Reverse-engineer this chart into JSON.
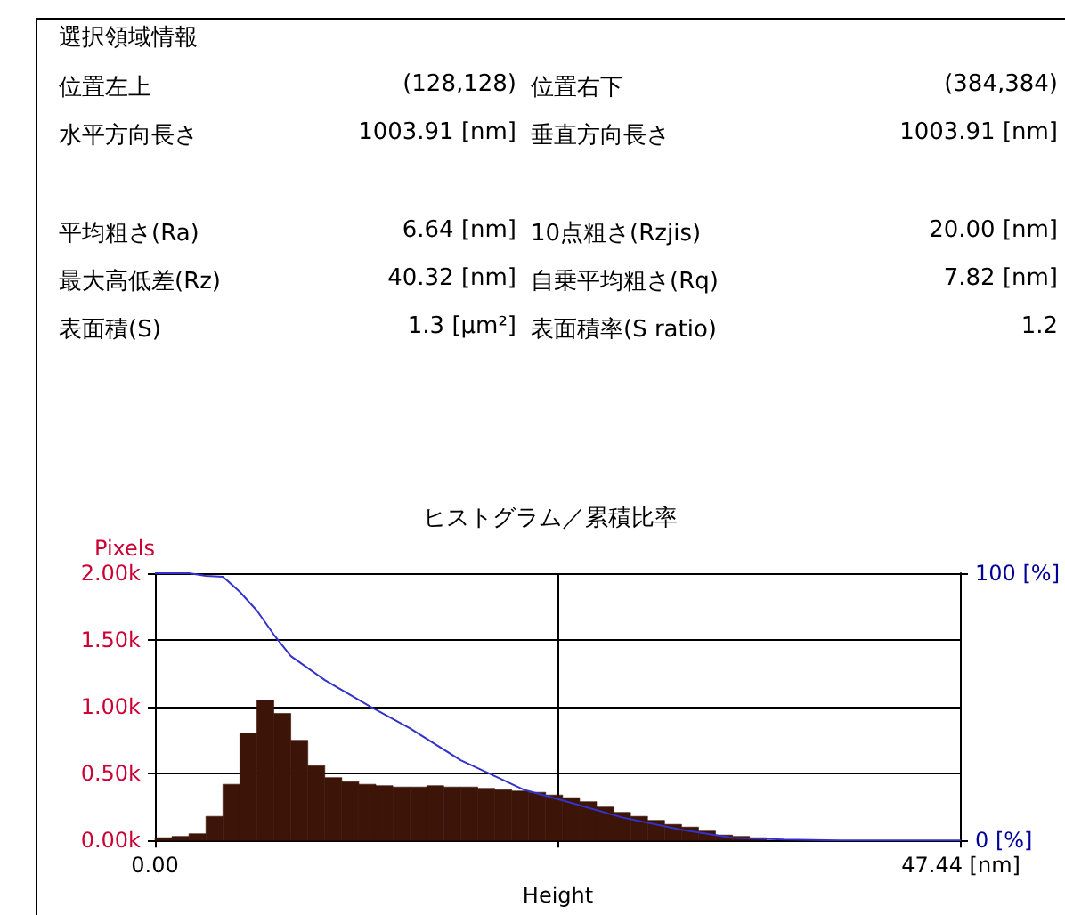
{
  "chart_data": [
    {
      "type": "other",
      "title": "選択領域情報",
      "annotations": [
        "位置左上",
        "(128,128)",
        "位置右下",
        "(384,384)",
        "水平方向長さ",
        "1003.91 [nm]",
        "垂直方向長さ",
        "1003.91 [nm]",
        "平均粗さ(Ra)",
        "6.64 [nm]",
        "10点粗さ(Rzjis)",
        "20.00 [nm]",
        "最大高低差(Rz)",
        "40.32 [nm]",
        "自乗平均粗さ(Rq)",
        "7.82 [nm]",
        "表面積(S)",
        "1.3 [μm²]",
        "表面積率(S ratio)",
        "1.2"
      ]
    },
    {
      "type": "histogram",
      "title": "ヒストグラム／累積比率",
      "xlabel": "Height",
      "ylabel": "Pixels",
      "bins": [
        0,
        1,
        2,
        3,
        4,
        5,
        6,
        7,
        8,
        9,
        10,
        11,
        12,
        13,
        14,
        15,
        16,
        17,
        18,
        19,
        20,
        21,
        22,
        23,
        24,
        25,
        26,
        27,
        28,
        29,
        30,
        31,
        32,
        33,
        34,
        35,
        36,
        37,
        38,
        39,
        40
      ],
      "series": [
        {
          "type": "histogram",
          "color": "#3d1408",
          "values": [
            20,
            30,
            50,
            180,
            420,
            800,
            1050,
            950,
            750,
            560,
            470,
            440,
            420,
            410,
            400,
            400,
            410,
            400,
            400,
            390,
            380,
            370,
            360,
            340,
            320,
            290,
            250,
            210,
            180,
            150,
            120,
            100,
            70,
            40,
            30,
            20,
            null,
            null,
            null,
            null
          ]
        },
        {
          "type": "line",
          "axis": "y2",
          "color": "#3333cc",
          "x": [
            0,
            2,
            3,
            4,
            5,
            6,
            7,
            8,
            10,
            12.7,
            15,
            18,
            21.7,
            24,
            27.5,
            31,
            34,
            37,
            40.32,
            47.44
          ],
          "values": [
            100,
            100,
            99,
            98.7,
            93,
            86,
            77,
            69,
            60,
            50,
            42,
            30,
            19,
            15,
            8.6,
            4,
            1,
            0.3,
            0,
            0
          ]
        }
      ],
      "xlim": [
        0,
        47.44
      ],
      "xticks": [
        {
          "value": 0,
          "label": "0.00"
        },
        {
          "value": 23.72,
          "label": null
        },
        {
          "value": 47.44,
          "label": "47.44 [nm]"
        }
      ],
      "ylim": [
        0,
        2000
      ],
      "yticks": [
        {
          "value": 0,
          "label": "0.00k"
        },
        {
          "value": 500,
          "label": "0.50k"
        },
        {
          "value": 1000,
          "label": "1.00k"
        },
        {
          "value": 1500,
          "label": "1.50k"
        },
        {
          "value": 2000,
          "label": "2.00k"
        }
      ],
      "y2lim": [
        0,
        100
      ],
      "y2ticks": [
        {
          "value": 0,
          "label": "0 [%]"
        },
        {
          "value": 100,
          "label": "100 [%]"
        }
      ],
      "grid": true
    }
  ]
}
